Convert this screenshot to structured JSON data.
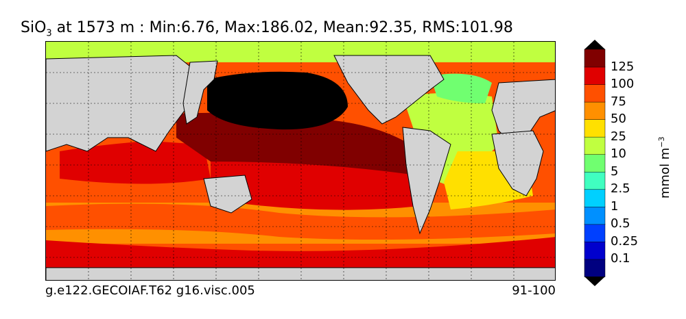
{
  "figure": {
    "title_var": "SiO",
    "title_sub": "3",
    "title_rest": " at 1573 m : Min:6.76, Max:186.02, Mean:92.35, RMS:101.98",
    "footer_left": "g.e122.GECOIAF.T62 g16.visc.005",
    "footer_right": "91-100"
  },
  "colorbar": {
    "unit_base": "mmol m",
    "unit_exp": "−3",
    "labels": [
      "125",
      "100",
      "75",
      "50",
      "25",
      "10",
      "5",
      "2.5",
      "1",
      "0.5",
      "0.25",
      "0.1"
    ],
    "colors": [
      "#000080",
      "#0000cd",
      "#0040ff",
      "#0090ff",
      "#00d0ff",
      "#40ffc0",
      "#70ff70",
      "#c0ff40",
      "#ffe000",
      "#ff9000",
      "#ff5000",
      "#e00000",
      "#800000"
    ]
  },
  "map": {
    "land_color": "#d3d3d3",
    "bands": [
      {
        "name": "arctic",
        "color": "#c0ff40"
      },
      {
        "name": "north-pacific-max",
        "color": "#000000"
      },
      {
        "name": "pacific-tropics",
        "color": "#800000"
      },
      {
        "name": "pacific-south",
        "color": "#e00000"
      },
      {
        "name": "indian-ocean",
        "color": "#e00000"
      },
      {
        "name": "southern-ocean-1",
        "color": "#ff9000"
      },
      {
        "name": "southern-ocean-2",
        "color": "#ff5000"
      },
      {
        "name": "antarctic-shelf",
        "color": "#e00000"
      },
      {
        "name": "north-atlantic",
        "color": "#c0ff40"
      },
      {
        "name": "labrador",
        "color": "#70ff70"
      },
      {
        "name": "south-atlantic",
        "color": "#ffe000"
      }
    ]
  }
}
